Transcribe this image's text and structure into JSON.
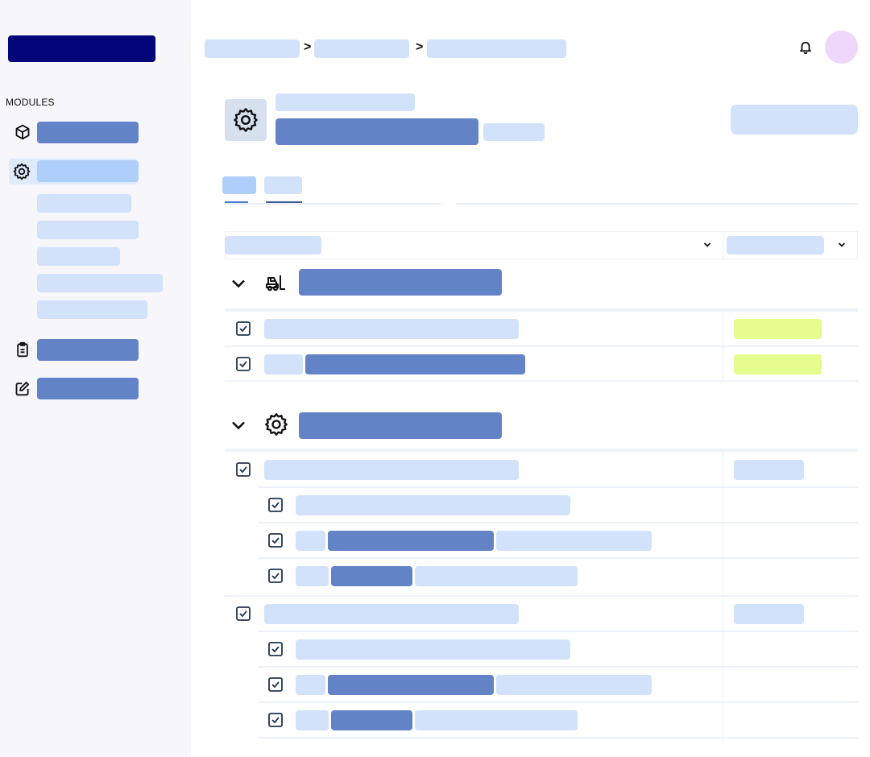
{
  "sidebar": {
    "section_label": "MODULES",
    "items": [
      {
        "icon": "cube-icon"
      },
      {
        "icon": "gear-icon",
        "active": true
      },
      {
        "icon": "clipboard-icon"
      },
      {
        "icon": "edit-icon"
      }
    ]
  },
  "header": {
    "notification_icon": "bell-icon",
    "breadcrumb_separator": ">"
  },
  "page": {
    "icon": "gear-icon"
  },
  "groups": [
    {
      "icon": "forklift-icon"
    },
    {
      "icon": "gear-icon"
    }
  ],
  "colors": {
    "sidebar_bg": "#f6f6fb",
    "logo": "#020678",
    "placeholder_light": "#d2e2fb",
    "placeholder_mid": "#6283c5",
    "placeholder_active": "#aecff9",
    "status_lime": "#e5fc8e",
    "avatar": "#efd6fb"
  }
}
